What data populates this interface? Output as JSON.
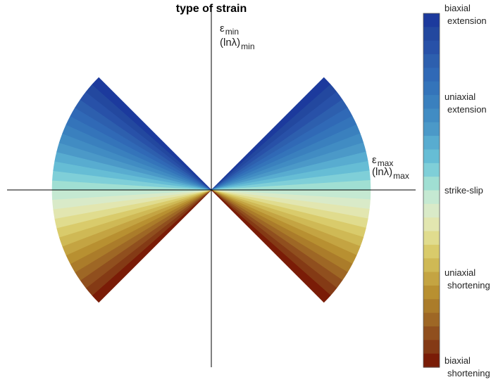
{
  "title": "type of strain",
  "axes": {
    "y_label": {
      "symbol": "ε",
      "sub": "min",
      "line2": "(lnλ)",
      "line2_sub": "min"
    },
    "x_label": {
      "symbol": "ε",
      "sub": "max",
      "line2": "(lnλ)",
      "line2_sub": "max"
    }
  },
  "colormap": [
    "#1c3a9d",
    "#23489f",
    "#2851a8",
    "#2d5fae",
    "#3069b6",
    "#3474ba",
    "#3a80be",
    "#418cc3",
    "#4b99c8",
    "#58acd0",
    "#66bdd5",
    "#7fcfd8",
    "#a0dfd3",
    "#c5e9d2",
    "#d9eac8",
    "#e2e6b0",
    "#e0dc8e",
    "#d9cb6b",
    "#cfb955",
    "#c4a442",
    "#b89031",
    "#ab7c2a",
    "#9e6725",
    "#904f1e",
    "#843a15",
    "#7a1c07"
  ],
  "colorbar": {
    "labels": [
      {
        "key": "biaxial_extension",
        "line1": "biaxial",
        "line2": "extension"
      },
      {
        "key": "uniaxial_extension",
        "line1": "uniaxial",
        "line2": "extension"
      },
      {
        "key": "strike_slip",
        "line1": "strike-slip",
        "line2": ""
      },
      {
        "key": "uniaxial_shortening",
        "line1": "uniaxial",
        "line2": "shortening"
      },
      {
        "key": "biaxial_shortening",
        "line1": "biaxial",
        "line2": "shortening"
      }
    ]
  }
}
